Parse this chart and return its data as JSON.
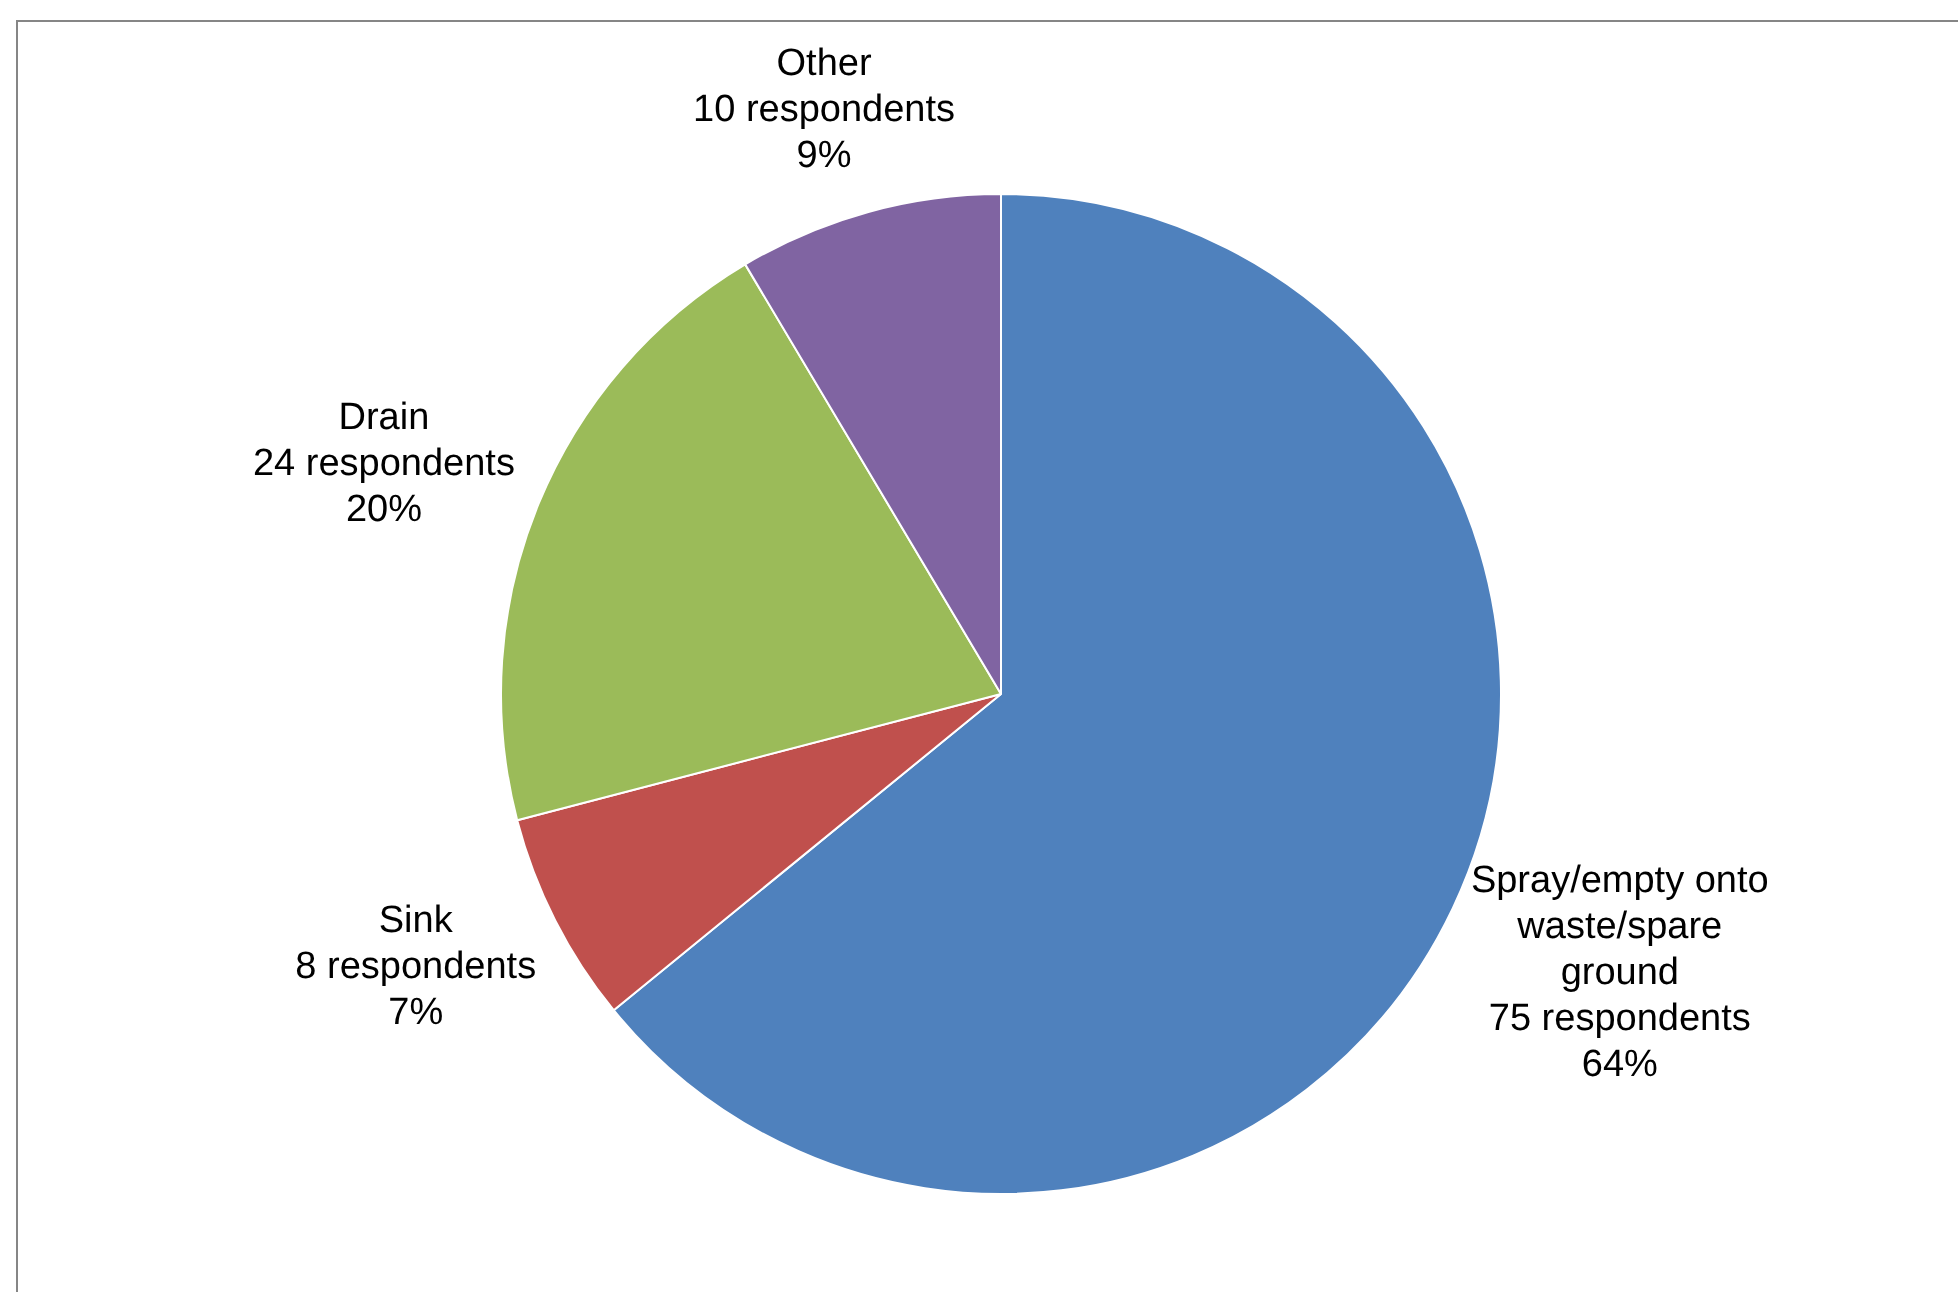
{
  "chart_data": {
    "type": "pie",
    "categories": [
      "Spray/empty onto\nwaste/spare\nground",
      "Sink",
      "Drain",
      "Other"
    ],
    "values": [
      75,
      8,
      24,
      10
    ],
    "colors": [
      "#4f81bd",
      "#c0504d",
      "#9bbb59",
      "#8064a2"
    ],
    "value_labels": [
      "75 respondents\n64%",
      "8 respondents\n7%",
      "24 respondents\n20%",
      "10 respondents\n9%"
    ],
    "legend": false
  }
}
